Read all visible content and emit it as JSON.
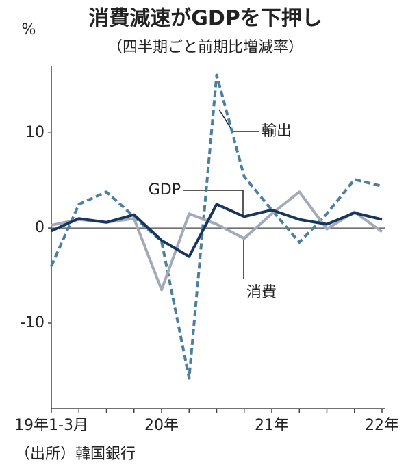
{
  "chart_data": {
    "type": "line",
    "title": "消費減速がGDPを下押し",
    "subtitle": "（四半期ごと前期比増減率）",
    "y_unit": "%",
    "source": "（出所）韓国銀行",
    "categories": [
      "19年1-3月",
      null,
      null,
      null,
      "20年",
      null,
      null,
      null,
      "21年",
      null,
      null,
      null,
      "22年"
    ],
    "series": [
      {
        "name": "輸出",
        "color": "#4a7fa0",
        "dashed": true,
        "values": [
          -4.0,
          2.5,
          3.8,
          1.2,
          -1.4,
          -15.8,
          16.1,
          5.4,
          1.9,
          -1.5,
          1.5,
          5.1,
          4.4
        ]
      },
      {
        "name": "消費",
        "color": "#a3a9b8",
        "dashed": false,
        "values": [
          0.3,
          0.9,
          0.6,
          1.0,
          -6.5,
          1.5,
          0.4,
          -1.1,
          1.5,
          3.8,
          -0.1,
          1.7,
          -0.4
        ]
      },
      {
        "name": "GDP",
        "color": "#17365d",
        "dashed": false,
        "values": [
          -0.3,
          1.0,
          0.6,
          1.4,
          -1.3,
          -3.0,
          2.5,
          1.2,
          1.9,
          0.9,
          0.4,
          1.6,
          0.9
        ]
      }
    ],
    "ylim": [
      -19,
      17
    ],
    "yticks": [
      -10,
      0,
      10
    ]
  }
}
